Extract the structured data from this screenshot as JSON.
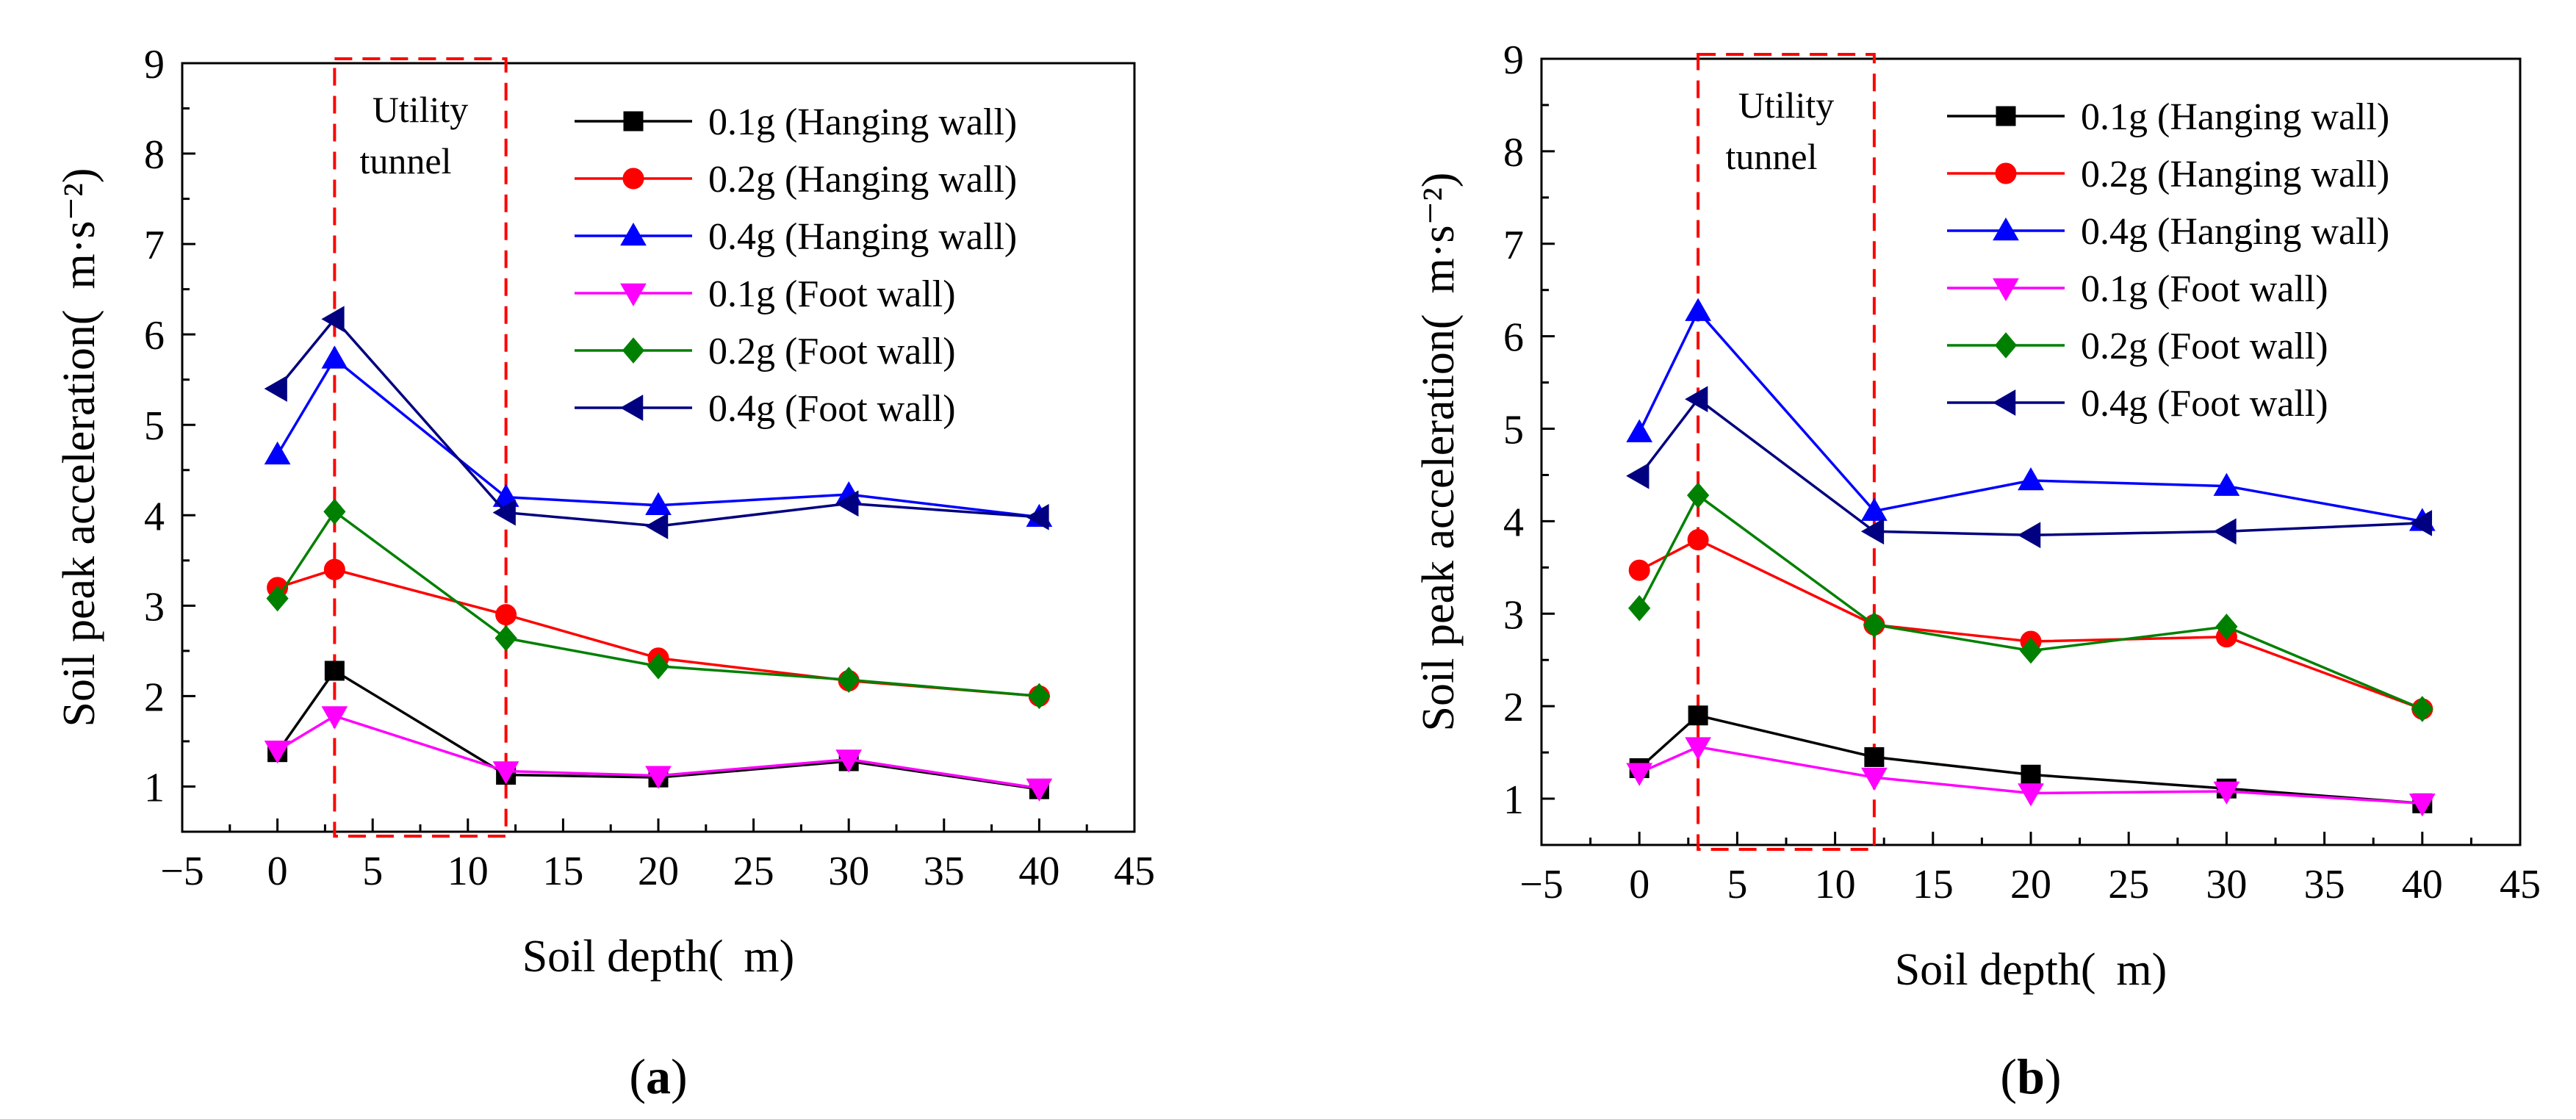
{
  "chart_data": [
    {
      "type": "line",
      "panel_label": "a",
      "xlabel": "Soil depth(  m)",
      "ylabel": "Soil peak acceleration(  m·s⁻²)",
      "xlim": [
        -5,
        45
      ],
      "ylim": [
        0.5,
        9
      ],
      "xticks": [
        -5,
        0,
        5,
        10,
        15,
        20,
        25,
        30,
        35,
        40,
        45
      ],
      "yticks": [
        1,
        2,
        3,
        4,
        5,
        6,
        7,
        8,
        9
      ],
      "x": [
        0,
        3,
        12,
        20,
        30,
        40
      ],
      "tunnel_region": {
        "x0": 3,
        "x1": 12,
        "label_line1": "Utility",
        "label_line2": "tunnel"
      },
      "legend_position": "top-right",
      "series": [
        {
          "name": "0.1g (Hanging wall)",
          "color": "#000000",
          "marker": "square",
          "values": [
            1.38,
            2.28,
            1.13,
            1.1,
            1.28,
            0.97
          ]
        },
        {
          "name": "0.2g (Hanging wall)",
          "color": "#ff0000",
          "marker": "circle",
          "values": [
            3.2,
            3.4,
            2.9,
            2.42,
            2.17,
            2.0
          ]
        },
        {
          "name": "0.4g (Hanging wall)",
          "color": "#0000ff",
          "marker": "triangle-up",
          "values": [
            4.67,
            5.73,
            4.2,
            4.11,
            4.23,
            3.98
          ]
        },
        {
          "name": "0.1g (Foot wall)",
          "color": "#ff00ff",
          "marker": "triangle-down",
          "values": [
            1.4,
            1.78,
            1.17,
            1.12,
            1.3,
            0.98
          ]
        },
        {
          "name": "0.2g (Foot wall)",
          "color": "#008000",
          "marker": "diamond",
          "values": [
            3.08,
            4.04,
            2.64,
            2.33,
            2.18,
            2.0
          ]
        },
        {
          "name": "0.4g (Foot wall)",
          "color": "#000080",
          "marker": "triangle-left",
          "values": [
            5.4,
            6.17,
            4.03,
            3.88,
            4.13,
            3.98
          ]
        }
      ]
    },
    {
      "type": "line",
      "panel_label": "b",
      "xlabel": "Soil depth(  m)",
      "ylabel": "Soil peak acceleration(  m·s⁻²)",
      "xlim": [
        -5,
        45
      ],
      "ylim": [
        0.5,
        9
      ],
      "xticks": [
        -5,
        0,
        5,
        10,
        15,
        20,
        25,
        30,
        35,
        40,
        45
      ],
      "yticks": [
        1,
        2,
        3,
        4,
        5,
        6,
        7,
        8,
        9
      ],
      "x": [
        0,
        3,
        12,
        20,
        30,
        40
      ],
      "tunnel_region": {
        "x0": 3,
        "x1": 12,
        "label_line1": "Utility",
        "label_line2": "tunnel"
      },
      "legend_position": "top-right",
      "series": [
        {
          "name": "0.1g (Hanging wall)",
          "color": "#000000",
          "marker": "square",
          "values": [
            1.33,
            1.9,
            1.45,
            1.26,
            1.11,
            0.95
          ]
        },
        {
          "name": "0.2g (Hanging wall)",
          "color": "#ff0000",
          "marker": "circle",
          "values": [
            3.47,
            3.8,
            2.88,
            2.7,
            2.75,
            1.97
          ]
        },
        {
          "name": "0.4g (Hanging wall)",
          "color": "#0000ff",
          "marker": "triangle-up",
          "values": [
            4.96,
            6.27,
            4.11,
            4.44,
            4.38,
            4.0
          ]
        },
        {
          "name": "0.1g (Foot wall)",
          "color": "#ff00ff",
          "marker": "triangle-down",
          "values": [
            1.28,
            1.56,
            1.23,
            1.06,
            1.08,
            0.95
          ]
        },
        {
          "name": "0.2g (Foot wall)",
          "color": "#008000",
          "marker": "diamond",
          "values": [
            3.06,
            4.28,
            2.88,
            2.6,
            2.86,
            1.97
          ]
        },
        {
          "name": "0.4g (Foot wall)",
          "color": "#000080",
          "marker": "triangle-left",
          "values": [
            4.49,
            5.32,
            3.89,
            3.85,
            3.89,
            3.98
          ]
        }
      ]
    }
  ]
}
